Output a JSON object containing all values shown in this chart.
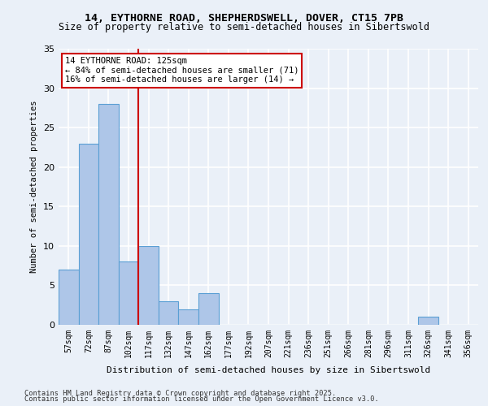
{
  "title1": "14, EYTHORNE ROAD, SHEPHERDSWELL, DOVER, CT15 7PB",
  "title2": "Size of property relative to semi-detached houses in Sibertswold",
  "xlabel": "Distribution of semi-detached houses by size in Sibertswold",
  "ylabel": "Number of semi-detached properties",
  "bar_values": [
    7,
    23,
    28,
    8,
    10,
    3,
    2,
    4,
    0,
    0,
    0,
    0,
    0,
    0,
    0,
    0,
    0,
    0,
    1,
    0,
    0
  ],
  "categories": [
    "57sqm",
    "72sqm",
    "87sqm",
    "102sqm",
    "117sqm",
    "132sqm",
    "147sqm",
    "162sqm",
    "177sqm",
    "192sqm",
    "207sqm",
    "221sqm",
    "236sqm",
    "251sqm",
    "266sqm",
    "281sqm",
    "296sqm",
    "311sqm",
    "326sqm",
    "341sqm",
    "356sqm"
  ],
  "bar_color": "#aec6e8",
  "bar_edge_color": "#5a9fd4",
  "bar_width": 1.0,
  "vline_x": 4,
  "vline_color": "#cc0000",
  "annotation_title": "14 EYTHORNE ROAD: 125sqm",
  "annotation_line1": "← 84% of semi-detached houses are smaller (71)",
  "annotation_line2": "16% of semi-detached houses are larger (14) →",
  "annotation_box_color": "#cc0000",
  "ylim": [
    0,
    35
  ],
  "yticks": [
    0,
    5,
    10,
    15,
    20,
    25,
    30,
    35
  ],
  "bg_color": "#eaf0f8",
  "plot_bg_color": "#eaf0f8",
  "grid_color": "#ffffff",
  "footer1": "Contains HM Land Registry data © Crown copyright and database right 2025.",
  "footer2": "Contains public sector information licensed under the Open Government Licence v3.0."
}
